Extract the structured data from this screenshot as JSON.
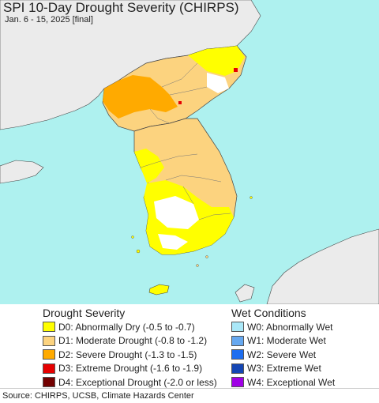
{
  "header": {
    "title": "SPI 10-Day Drought Severity (CHIRPS)",
    "subtitle": "Jan. 6 - 15, 2025 [final]"
  },
  "colors": {
    "ocean": "#aef1ef",
    "land_nodata": "#ebebeb",
    "border": "#444444"
  },
  "legend_drought": {
    "heading": "Drought Severity",
    "items": [
      {
        "label": "D0: Abnormally Dry (-0.5 to -0.7)",
        "color": "#ffff00"
      },
      {
        "label": "D1: Moderate Drought (-0.8 to -1.2)",
        "color": "#fcd37f"
      },
      {
        "label": "D2: Severe Drought (-1.3 to -1.5)",
        "color": "#ffaa00"
      },
      {
        "label": "D3: Extreme Drought (-1.6 to -1.9)",
        "color": "#e60000"
      },
      {
        "label": "D4: Exceptional Drought (-2.0 or less)",
        "color": "#730000"
      }
    ]
  },
  "legend_wet": {
    "heading": "Wet Conditions",
    "items": [
      {
        "label": "W0: Abnormally Wet",
        "color": "#aae8f8"
      },
      {
        "label": "W1: Moderate Wet",
        "color": "#66a8f0"
      },
      {
        "label": "W2: Severe Wet",
        "color": "#1e6ef0"
      },
      {
        "label": "W3: Extreme Wet",
        "color": "#1446b4"
      },
      {
        "label": "W4: Exceptional Wet",
        "color": "#a000e6"
      }
    ]
  },
  "footer": {
    "source": "Source: CHIRPS, UCSB, Climate Hazards Center"
  }
}
